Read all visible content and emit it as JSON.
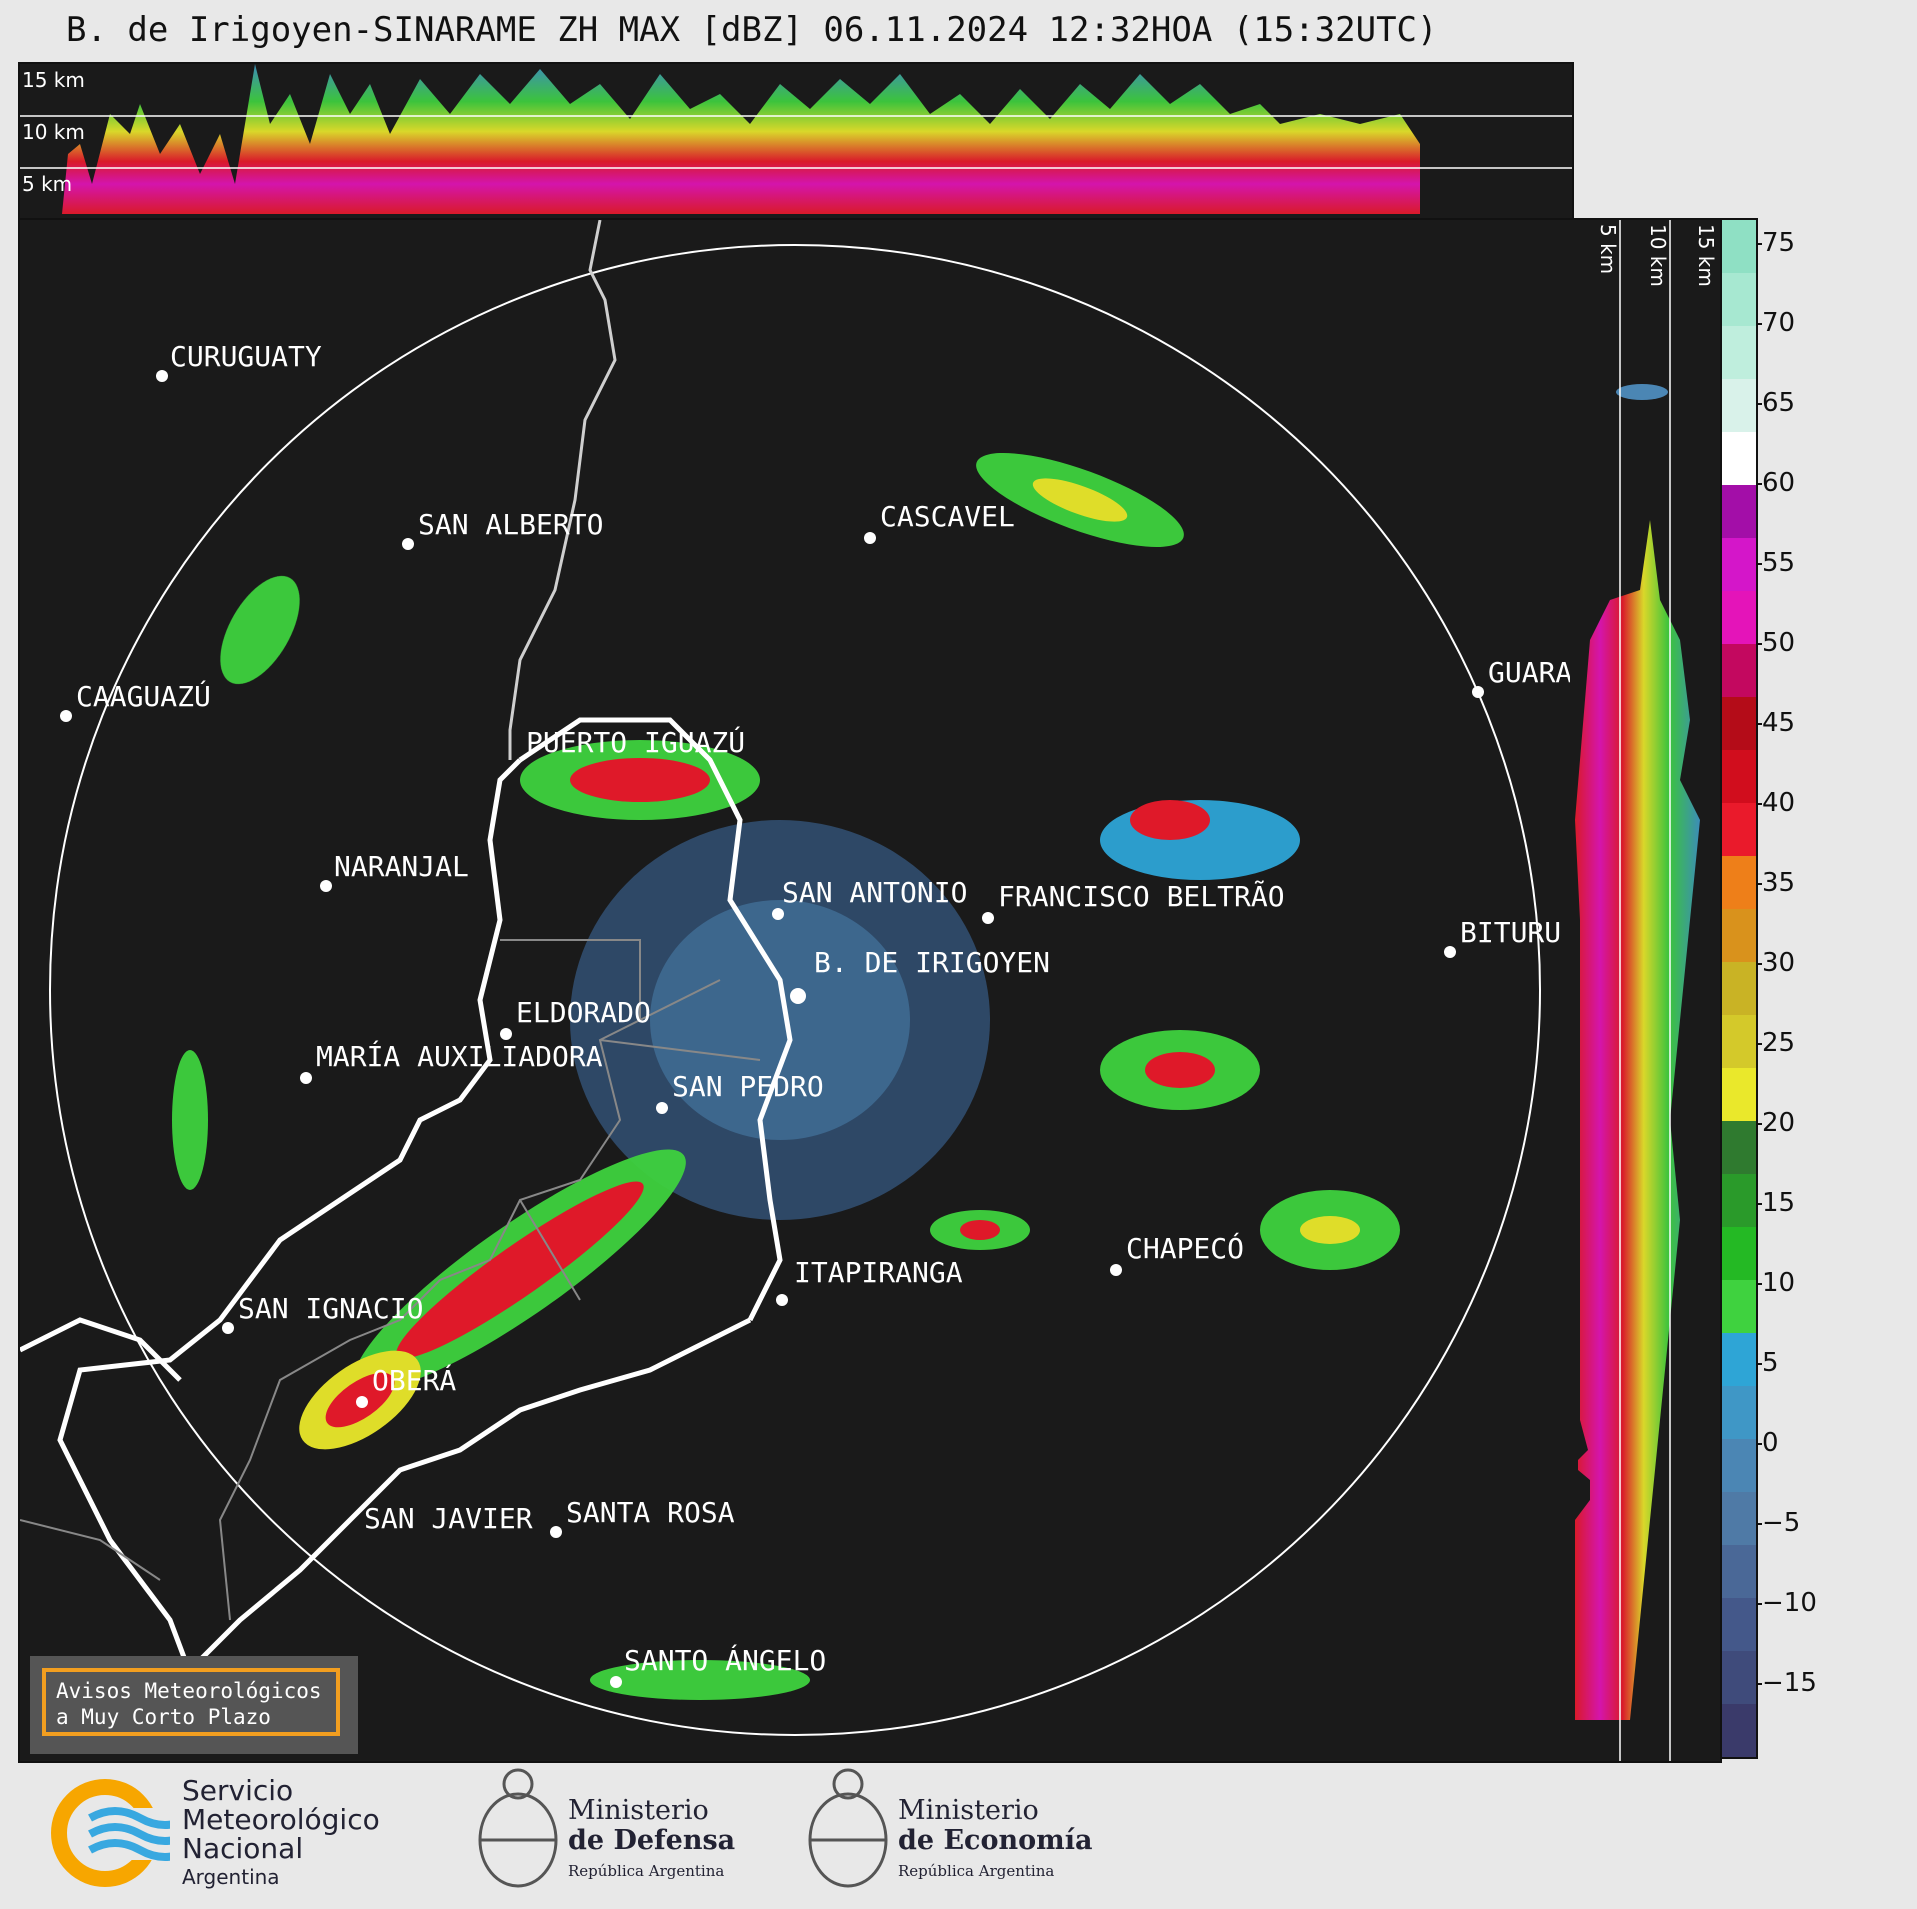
{
  "title": "B. de Irigoyen-SINARAME ZH MAX [dBZ] 06.11.2024 12:32HOA (15:32UTC)",
  "top_km_labels": [
    "15 km",
    "10 km",
    "5 km"
  ],
  "side_km_labels": [
    "5 km",
    "10 km",
    "15 km"
  ],
  "colorbar": {
    "ticks": [
      "75",
      "70",
      "65",
      "60",
      "55",
      "50",
      "45",
      "40",
      "35",
      "30",
      "25",
      "20",
      "15",
      "10",
      "5",
      "0",
      "−5",
      "−10",
      "−15"
    ],
    "colors": [
      "#3a3a6a",
      "#3f4b7b",
      "#44588a",
      "#4a6897",
      "#4f7aa6",
      "#4b86b4",
      "#3f97c6",
      "#2ea5d6",
      "#3fd23f",
      "#24b924",
      "#2a9a2a",
      "#2f7a2f",
      "#eae82b",
      "#d4c92a",
      "#c9b325",
      "#d9921c",
      "#ee7f19",
      "#ea1a2b",
      "#d10d1d",
      "#b40c18",
      "#c3085f",
      "#e414b9",
      "#d416c9",
      "#a30ea8",
      "#ffffff",
      "#d9f2ea",
      "#bfeedd",
      "#a7e8d1",
      "#8fe0c4"
    ]
  },
  "cities": [
    {
      "name": "CURUGUATY"
    },
    {
      "name": "SAN ALBERTO"
    },
    {
      "name": "CASCAVEL"
    },
    {
      "name": "CAAGUAZÚ"
    },
    {
      "name": "GUARA"
    },
    {
      "name": "PUERTO IGUAZÚ"
    },
    {
      "name": "NARANJAL"
    },
    {
      "name": "SAN ANTONIO"
    },
    {
      "name": "FRANCISCO BELTRÃO"
    },
    {
      "name": "BITURU"
    },
    {
      "name": "B. DE IRIGOYEN"
    },
    {
      "name": "ELDORADO"
    },
    {
      "name": "MARÍA AUXILIADORA"
    },
    {
      "name": "SAN PEDRO"
    },
    {
      "name": "ITAPIRANGA"
    },
    {
      "name": "CHAPECÓ"
    },
    {
      "name": "SAN IGNACIO"
    },
    {
      "name": "OBERÁ"
    },
    {
      "name": "SAN JAVIER"
    },
    {
      "name": "SANTA ROSA"
    },
    {
      "name": "SANTO ÁNGELO"
    }
  ],
  "avisos": {
    "line1": "Avisos Meteorológicos",
    "line2": "a Muy Corto Plazo"
  },
  "logos": {
    "smn": {
      "line1": "Servicio",
      "line2": "Meteorológico",
      "line3": "Nacional",
      "line4": "Argentina"
    },
    "defensa": {
      "line1": "Ministerio",
      "line2": "de Defensa",
      "line3": "República Argentina"
    },
    "economia": {
      "line1": "Ministerio",
      "line2": "de Economía",
      "line3": "República Argentina"
    }
  }
}
